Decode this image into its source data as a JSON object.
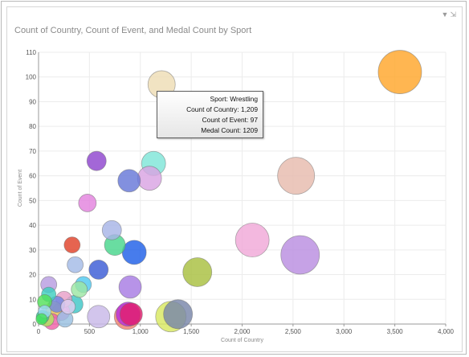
{
  "title": "Count of Country, Count of Event, and Medal Count by Sport",
  "icons": [
    "filter-icon",
    "popout-icon"
  ],
  "tooltip": {
    "rows": [
      {
        "label": "Sport:",
        "value": "Wrestling"
      },
      {
        "label": "Count of Country:",
        "value": "1,209"
      },
      {
        "label": "Count of Event:",
        "value": "97"
      },
      {
        "label": "Medal Count:",
        "value": "1209"
      }
    ]
  },
  "chart_data": {
    "type": "scatter",
    "title": "Count of Country, Count of Event, and Medal Count by Sport",
    "xlabel": "Count of Country",
    "ylabel": "Count of Event",
    "xlim": [
      0,
      4000
    ],
    "ylim": [
      0,
      110
    ],
    "xticks": [
      0,
      500,
      1000,
      1500,
      2000,
      2500,
      3000,
      3500,
      4000
    ],
    "xtick_labels": [
      "0",
      "500",
      "1,000",
      "1,500",
      "2,000",
      "2,500",
      "3,000",
      "3,500",
      "4,000"
    ],
    "yticks": [
      0,
      10,
      20,
      30,
      40,
      50,
      60,
      70,
      80,
      90,
      100,
      110
    ],
    "ytick_labels": [
      "0",
      "10",
      "20",
      "30",
      "40",
      "50",
      "60",
      "70",
      "80",
      "90",
      "100",
      "110"
    ],
    "grid": true,
    "points": [
      {
        "x": 3550,
        "y": 102,
        "r": 27,
        "color": "#FFA62B"
      },
      {
        "x": 2530,
        "y": 60,
        "r": 23,
        "color": "#E6BBAD"
      },
      {
        "x": 2100,
        "y": 34,
        "r": 21,
        "color": "#F0A8D8"
      },
      {
        "x": 2570,
        "y": 28,
        "r": 24,
        "color": "#B98DE0"
      },
      {
        "x": 1560,
        "y": 21,
        "r": 18,
        "color": "#A8C040"
      },
      {
        "x": 1209,
        "y": 97,
        "r": 17,
        "color": "#EEDDB5"
      },
      {
        "x": 1130,
        "y": 65,
        "r": 15,
        "color": "#7FE5D8"
      },
      {
        "x": 1090,
        "y": 59,
        "r": 15,
        "color": "#D9A4E3"
      },
      {
        "x": 890,
        "y": 58,
        "r": 14,
        "color": "#6677D8"
      },
      {
        "x": 570,
        "y": 66,
        "r": 12,
        "color": "#8F46CE"
      },
      {
        "x": 480,
        "y": 49,
        "r": 11,
        "color": "#E383DE"
      },
      {
        "x": 720,
        "y": 38,
        "r": 12,
        "color": "#A7B4E6"
      },
      {
        "x": 750,
        "y": 32,
        "r": 13,
        "color": "#48D68C"
      },
      {
        "x": 940,
        "y": 29,
        "r": 15,
        "color": "#1F5FE8"
      },
      {
        "x": 900,
        "y": 15,
        "r": 14,
        "color": "#A77BE3"
      },
      {
        "x": 590,
        "y": 22,
        "r": 12,
        "color": "#3B5BD5"
      },
      {
        "x": 330,
        "y": 32,
        "r": 10,
        "color": "#E0422A"
      },
      {
        "x": 360,
        "y": 24,
        "r": 10,
        "color": "#A3BBE6"
      },
      {
        "x": 440,
        "y": 16,
        "r": 10,
        "color": "#50C9F0"
      },
      {
        "x": 400,
        "y": 14,
        "r": 10,
        "color": "#9CE6A3"
      },
      {
        "x": 350,
        "y": 8,
        "r": 11,
        "color": "#3EC7C7"
      },
      {
        "x": 590,
        "y": 3,
        "r": 14,
        "color": "#C8B8E8"
      },
      {
        "x": 870,
        "y": 3,
        "r": 16,
        "color": "#F08070"
      },
      {
        "x": 880,
        "y": 4,
        "r": 15,
        "color": "#B82EE0"
      },
      {
        "x": 910,
        "y": 4,
        "r": 14,
        "color": "#E0206E"
      },
      {
        "x": 1300,
        "y": 3,
        "r": 19,
        "color": "#D8E860"
      },
      {
        "x": 1370,
        "y": 4,
        "r": 18,
        "color": "#7986AA"
      },
      {
        "x": 100,
        "y": 16,
        "r": 10,
        "color": "#B79CE0"
      },
      {
        "x": 100,
        "y": 12,
        "r": 9,
        "color": "#3ECFC0"
      },
      {
        "x": 250,
        "y": 10,
        "r": 10,
        "color": "#E8A0C8"
      },
      {
        "x": 150,
        "y": 6,
        "r": 10,
        "color": "#F0D85C"
      },
      {
        "x": 60,
        "y": 9,
        "r": 9,
        "color": "#53E05A"
      },
      {
        "x": 180,
        "y": 8,
        "r": 10,
        "color": "#6E86E0"
      },
      {
        "x": 220,
        "y": 5,
        "r": 11,
        "color": "#E874D8"
      },
      {
        "x": 40,
        "y": 3,
        "r": 8,
        "color": "#2FD0A0"
      },
      {
        "x": 80,
        "y": 2,
        "r": 9,
        "color": "#B0E860"
      },
      {
        "x": 130,
        "y": 1,
        "r": 10,
        "color": "#F060A8"
      },
      {
        "x": 60,
        "y": 5,
        "r": 8,
        "color": "#9AD8F0"
      },
      {
        "x": 30,
        "y": 2,
        "r": 7,
        "color": "#47E15C"
      },
      {
        "x": 260,
        "y": 2,
        "r": 10,
        "color": "#98C0E0"
      },
      {
        "x": 290,
        "y": 7,
        "r": 9,
        "color": "#E0D0F0"
      }
    ]
  }
}
